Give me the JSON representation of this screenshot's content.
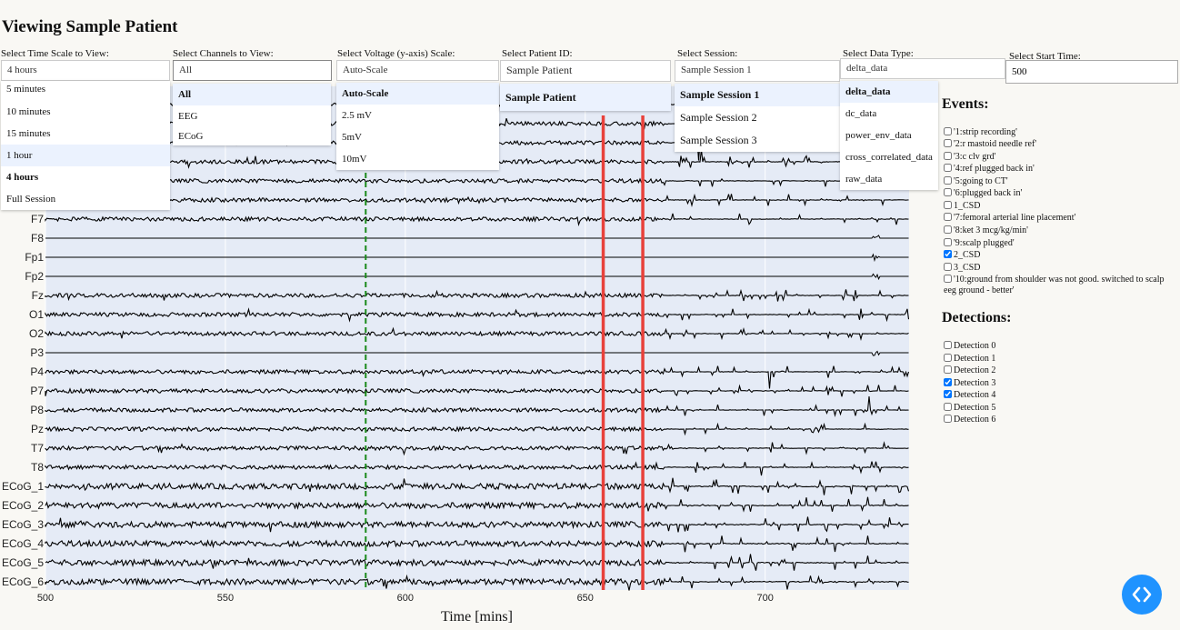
{
  "page_title": "Viewing Sample Patient",
  "controls": {
    "time_scale": {
      "label": "Select Time Scale to View:",
      "value": "4 hours",
      "options": [
        "5 minutes",
        "10 minutes",
        "15 minutes",
        "1 hour",
        "4 hours",
        "Full Session"
      ]
    },
    "channels": {
      "label": "Select Channels to View:",
      "value": "All",
      "options": [
        "All",
        "EEG",
        "ECoG"
      ]
    },
    "voltage": {
      "label": "Select Voltage (y-axis) Scale:",
      "value": "Auto-Scale",
      "options": [
        "Auto-Scale",
        "2.5 mV",
        "5mV",
        "10mV"
      ]
    },
    "patient": {
      "label": "Select Patient ID:",
      "value": "Sample Patient",
      "options": [
        "Sample Patient"
      ]
    },
    "session": {
      "label": "Select Session:",
      "value": "Sample Session 1",
      "options": [
        "Sample Session 1",
        "Sample Session 2",
        "Sample Session 3"
      ]
    },
    "data_type": {
      "label": "Select Data Type:",
      "value": "delta_data",
      "options": [
        "delta_data",
        "dc_data",
        "power_env_data",
        "cross_correlated_data",
        "raw_data"
      ]
    },
    "start_time": {
      "label": "Select Start Time:",
      "value": "500"
    }
  },
  "events": {
    "title": "Events:",
    "items": [
      {
        "label": "'1:strip recording'",
        "checked": false
      },
      {
        "label": "'2:r mastoid needle ref'",
        "checked": false
      },
      {
        "label": "'3:c clv grd'",
        "checked": false
      },
      {
        "label": "'4:ref plugged back in'",
        "checked": false
      },
      {
        "label": "'5:going to CT'",
        "checked": false
      },
      {
        "label": "'6:plugged back in'",
        "checked": false
      },
      {
        "label": "1_CSD",
        "checked": false
      },
      {
        "label": "'7:femoral arterial line placement'",
        "checked": false
      },
      {
        "label": "'8:ket 3 mcg/kg/min'",
        "checked": false
      },
      {
        "label": "'9:scalp plugged'",
        "checked": false
      },
      {
        "label": "2_CSD",
        "checked": true
      },
      {
        "label": "3_CSD",
        "checked": false
      },
      {
        "label": "'10:ground from shoulder was not good. switched to scalp eeg ground - better'",
        "checked": false
      }
    ]
  },
  "detections": {
    "title": "Detections:",
    "items": [
      {
        "label": "Detection 0",
        "checked": false
      },
      {
        "label": "Detection 1",
        "checked": false
      },
      {
        "label": "Detection 2",
        "checked": false
      },
      {
        "label": "Detection 3",
        "checked": true
      },
      {
        "label": "Detection 4",
        "checked": true
      },
      {
        "label": "Detection 5",
        "checked": false
      },
      {
        "label": "Detection 6",
        "checked": false
      }
    ]
  },
  "chart_data": {
    "type": "line",
    "xlabel": "Time [mins]",
    "x_ticks": [
      500,
      550,
      600,
      650,
      700
    ],
    "xlim": [
      500,
      740
    ],
    "channels": [
      "F7",
      "F8",
      "Fp1",
      "Fp2",
      "Fz",
      "O1",
      "O2",
      "P3",
      "P4",
      "P7",
      "P8",
      "Pz",
      "T7",
      "T8",
      "ECoG_1",
      "ECoG_2",
      "ECoG_3",
      "ECoG_4",
      "ECoG_5",
      "ECoG_6"
    ],
    "flat_channels": [
      "F8",
      "Fp1",
      "Fp2",
      "P3"
    ],
    "grid": true,
    "markers": [
      {
        "x": 589,
        "color": "#1a8a1a",
        "style": "dashed"
      },
      {
        "x": 655,
        "color": "#e8413b",
        "style": "solid"
      },
      {
        "x": 666,
        "color": "#e8413b",
        "style": "solid"
      }
    ],
    "colors": {
      "trace": "#000000",
      "plot_bg": "#e5ebf6"
    }
  },
  "nav_button_icon": "code-brackets-icon"
}
